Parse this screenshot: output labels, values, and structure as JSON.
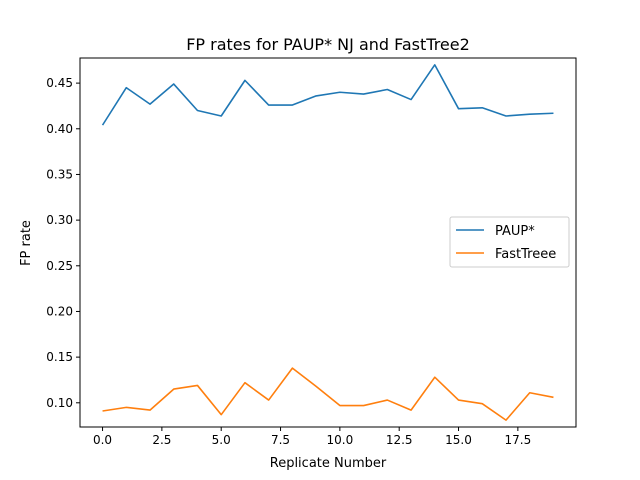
{
  "chart_data": {
    "type": "line",
    "title": "FP rates for PAUP* NJ and FastTree2",
    "xlabel": "Replicate Number",
    "ylabel": "FP rate",
    "xlim": [
      -0.95,
      19.95
    ],
    "ylim": [
      0.0735,
      0.4775
    ],
    "xticks": [
      0.0,
      2.5,
      5.0,
      7.5,
      10.0,
      12.5,
      15.0,
      17.5
    ],
    "xtick_labels": [
      "0.0",
      "2.5",
      "5.0",
      "7.5",
      "10.0",
      "12.5",
      "15.0",
      "17.5"
    ],
    "yticks": [
      0.1,
      0.15,
      0.2,
      0.25,
      0.3,
      0.35,
      0.4,
      0.45
    ],
    "ytick_labels": [
      "0.10",
      "0.15",
      "0.20",
      "0.25",
      "0.30",
      "0.35",
      "0.40",
      "0.45"
    ],
    "grid": false,
    "legend_position": "center-right",
    "x": [
      0,
      1,
      2,
      3,
      4,
      5,
      6,
      7,
      8,
      9,
      10,
      11,
      12,
      13,
      14,
      15,
      16,
      17,
      18,
      19
    ],
    "series": [
      {
        "name": "PAUP*",
        "color": "#1f77b4",
        "values": [
          0.404,
          0.445,
          0.427,
          0.449,
          0.42,
          0.414,
          0.453,
          0.426,
          0.426,
          0.436,
          0.44,
          0.438,
          0.443,
          0.432,
          0.47,
          0.422,
          0.423,
          0.414,
          0.416,
          0.417
        ]
      },
      {
        "name": "FastTreee",
        "color": "#ff7f0e",
        "values": [
          0.091,
          0.095,
          0.092,
          0.115,
          0.119,
          0.087,
          0.122,
          0.103,
          0.138,
          0.118,
          0.097,
          0.097,
          0.103,
          0.092,
          0.128,
          0.103,
          0.099,
          0.081,
          0.111,
          0.106
        ]
      }
    ]
  }
}
